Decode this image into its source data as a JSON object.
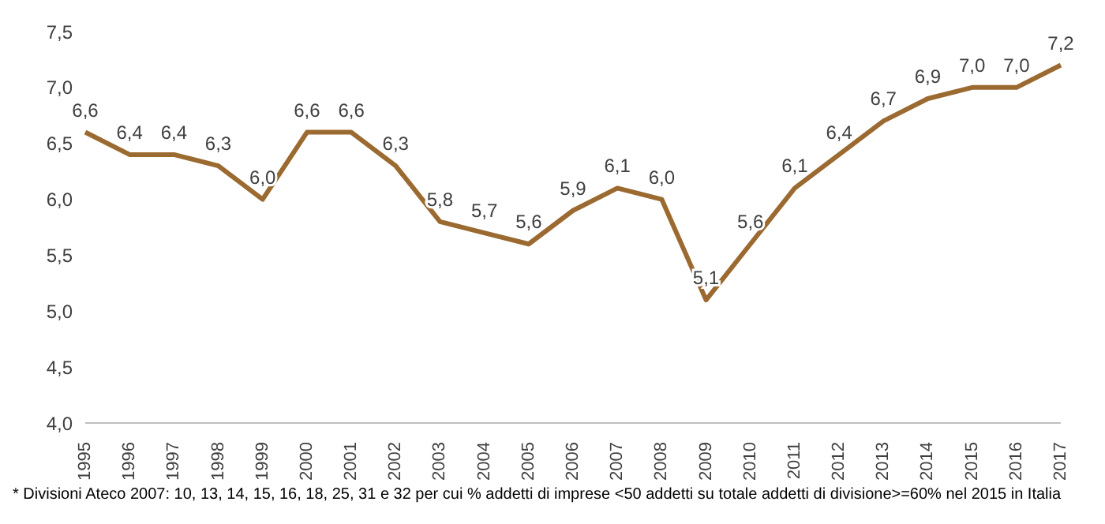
{
  "chart_data": {
    "type": "line",
    "categories": [
      "1995",
      "1996",
      "1997",
      "1998",
      "1999",
      "2000",
      "2001",
      "2002",
      "2003",
      "2004",
      "2005",
      "2006",
      "2007",
      "2008",
      "2009",
      "2010",
      "2011",
      "2012",
      "2013",
      "2014",
      "2015",
      "2016",
      "2017"
    ],
    "series": [
      {
        "color": "#9b6a30",
        "values": [
          6.6,
          6.4,
          6.4,
          6.3,
          6.0,
          6.6,
          6.6,
          6.3,
          5.8,
          5.7,
          5.6,
          5.9,
          6.1,
          6.0,
          5.1,
          5.6,
          6.1,
          6.4,
          6.7,
          6.9,
          7.0,
          7.0,
          7.2
        ],
        "value_labels": [
          "6,6",
          "6,4",
          "6,4",
          "6,3",
          "6,0",
          "6,6",
          "6,6",
          "6,3",
          "5,8",
          "5,7",
          "5,6",
          "5,9",
          "6,1",
          "6,0",
          "5,1",
          "5,6",
          "6,1",
          "6,4",
          "6,7",
          "6,9",
          "7,0",
          "7,0",
          "7,2"
        ]
      }
    ],
    "ylim": [
      4,
      7.5
    ],
    "yticks": [
      {
        "value": 4,
        "label": "4,0"
      },
      {
        "value": 4.5,
        "label": "4,5"
      },
      {
        "value": 5,
        "label": "5,0"
      },
      {
        "value": 5.5,
        "label": "5,5"
      },
      {
        "value": 6,
        "label": "6,0"
      },
      {
        "value": 6.5,
        "label": "6,5"
      },
      {
        "value": 7,
        "label": "7,0"
      },
      {
        "value": 7.5,
        "label": "7,5"
      }
    ],
    "grid": false,
    "legend": false,
    "marker": "none",
    "line_style": "solid",
    "annotations": [
      "* Divisioni Ateco 2007: 10, 13, 14, 15, 16, 18, 25, 31 e 32 per cui % addetti di imprese <50 addetti su totale addetti di divisione>=60% nel 2015 in Italia"
    ]
  }
}
